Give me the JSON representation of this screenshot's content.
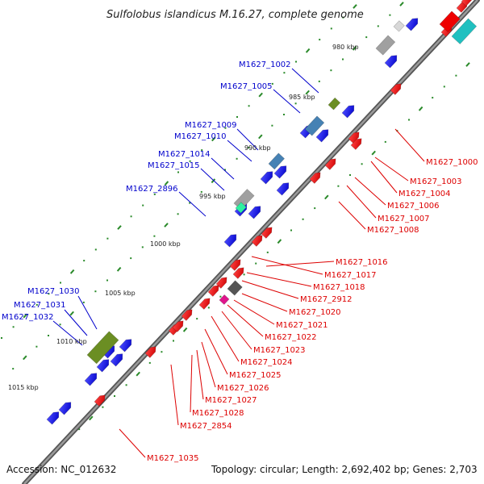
{
  "title": "Sulfolobus islandicus M.16.27, complete genome",
  "footer": {
    "accession": "Accession: NC_012632",
    "topology": "Topology: circular; Length: 2,692,402 bp; Genes: 2,703"
  },
  "kbp_ticks": [
    "980 kbp",
    "985 kbp",
    "990 kbp",
    "995 kbp",
    "1000 kbp",
    "1005 kbp",
    "1010 kbp",
    "1015 kbp"
  ],
  "left_labels": [
    "M1627_1002",
    "M1627_1005",
    "M1627_1009",
    "M1627_1010",
    "M1627_1014",
    "M1627_1015",
    "M1627_2896",
    "M1627_1030",
    "M1627_1031",
    "M1627_1032"
  ],
  "right_labels": [
    "M1627_1000",
    "M1627_1003",
    "M1627_1004",
    "M1627_1006",
    "M1627_1007",
    "M1627_1008",
    "M1627_1016",
    "M1627_1017",
    "M1627_1018",
    "M1627_2912",
    "M1627_1020",
    "M1627_1021",
    "M1627_1022",
    "M1627_1023",
    "M1627_1024",
    "M1627_1025",
    "M1627_1026",
    "M1627_1027",
    "M1627_1028",
    "M1627_2854",
    "M1627_1035"
  ],
  "colors": {
    "backbone": "#777777",
    "forward_cds": "#0000ee",
    "reverse_cds": "#ee0000",
    "left_label": "#0000cc",
    "right_label": "#dd0000",
    "gc_tick": "#228b22",
    "rna_olive": "#6b8e23",
    "rna_cyan": "#20c0c0",
    "rna_steel": "#4682b4",
    "rna_grey": "#a0a0a0",
    "rna_dark": "#555555",
    "rna_magenta": "#e0158c",
    "rna_mint": "#2ef0a0"
  }
}
